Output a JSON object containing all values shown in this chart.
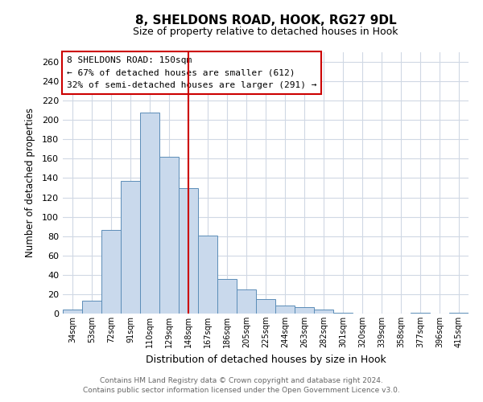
{
  "title": "8, SHELDONS ROAD, HOOK, RG27 9DL",
  "subtitle": "Size of property relative to detached houses in Hook",
  "xlabel": "Distribution of detached houses by size in Hook",
  "ylabel": "Number of detached properties",
  "categories": [
    "34sqm",
    "53sqm",
    "72sqm",
    "91sqm",
    "110sqm",
    "129sqm",
    "148sqm",
    "167sqm",
    "186sqm",
    "205sqm",
    "225sqm",
    "244sqm",
    "263sqm",
    "282sqm",
    "301sqm",
    "320sqm",
    "339sqm",
    "358sqm",
    "377sqm",
    "396sqm",
    "415sqm"
  ],
  "values": [
    4,
    13,
    86,
    137,
    208,
    162,
    130,
    81,
    36,
    25,
    15,
    8,
    7,
    4,
    1,
    0,
    0,
    0,
    1,
    0,
    1
  ],
  "bar_color": "#c9d9ec",
  "bar_edge_color": "#5b8db8",
  "vline_x": 6,
  "vline_color": "#cc0000",
  "annotation_title": "8 SHELDONS ROAD: 150sqm",
  "annotation_line1": "← 67% of detached houses are smaller (612)",
  "annotation_line2": "32% of semi-detached houses are larger (291) →",
  "annotation_box_color": "#ffffff",
  "annotation_box_edge": "#cc0000",
  "ylim": [
    0,
    270
  ],
  "yticks": [
    0,
    20,
    40,
    60,
    80,
    100,
    120,
    140,
    160,
    180,
    200,
    220,
    240,
    260
  ],
  "footer_line1": "Contains HM Land Registry data © Crown copyright and database right 2024.",
  "footer_line2": "Contains public sector information licensed under the Open Government Licence v3.0.",
  "background_color": "#ffffff",
  "grid_color": "#d0d8e4"
}
